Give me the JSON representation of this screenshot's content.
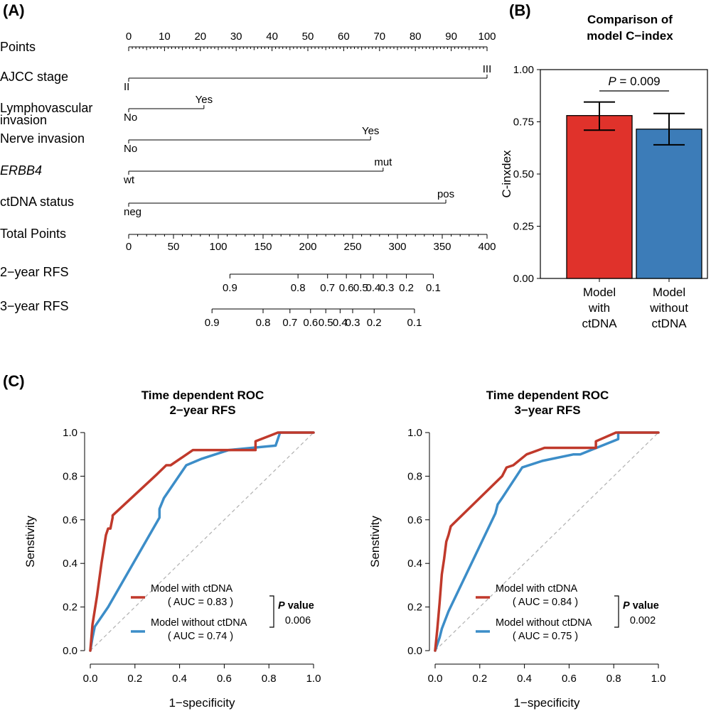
{
  "panels": {
    "a": "(A)",
    "b": "(B)",
    "c": "(C)"
  },
  "chart_data": [
    {
      "type": "nomogram",
      "points_scale": {
        "label": "Points",
        "min": 0,
        "max": 100,
        "labeled_ticks": [
          0,
          10,
          20,
          30,
          40,
          50,
          60,
          70,
          80,
          90,
          100
        ]
      },
      "variables": [
        {
          "name": "AJCC stage",
          "italic": false,
          "levels": [
            {
              "label": "II",
              "points": 0
            },
            {
              "label": "III",
              "points": 100
            }
          ]
        },
        {
          "name": "Lymphovascular\ninvasion",
          "italic": false,
          "levels": [
            {
              "label": "No",
              "points": 0
            },
            {
              "label": "Yes",
              "points": 21
            }
          ]
        },
        {
          "name": "Nerve invasion",
          "italic": false,
          "levels": [
            {
              "label": "No",
              "points": 0
            },
            {
              "label": "Yes",
              "points": 67.5
            }
          ]
        },
        {
          "name": "ERBB4",
          "italic": true,
          "levels": [
            {
              "label": "wt",
              "points": 0
            },
            {
              "label": "mut",
              "points": 71
            }
          ]
        },
        {
          "name": "ctDNA status",
          "italic": false,
          "levels": [
            {
              "label": "neg",
              "points": 0
            },
            {
              "label": "pos",
              "points": 88.5
            }
          ]
        }
      ],
      "total_points": {
        "label": "Total Points",
        "min": 0,
        "max": 400,
        "labeled_ticks": [
          0,
          50,
          100,
          150,
          200,
          250,
          300,
          350,
          400
        ]
      },
      "rfs_scales": [
        {
          "label": "2−year RFS",
          "start": 113,
          "end": 340,
          "ticks": [
            {
              "label": "0.9",
              "total": 113
            },
            {
              "label": "0.8",
              "total": 189
            },
            {
              "label": "0.7",
              "total": 222
            },
            {
              "label": "0.6",
              "total": 243
            },
            {
              "label": "0.5",
              "total": 259
            },
            {
              "label": "0.4",
              "total": 273
            },
            {
              "label": "0.3",
              "total": 288
            },
            {
              "label": "0.2",
              "total": 310
            },
            {
              "label": "0.1",
              "total": 340
            }
          ]
        },
        {
          "label": "3−year RFS",
          "start": 93,
          "end": 319,
          "ticks": [
            {
              "label": "0.9",
              "total": 93
            },
            {
              "label": "0.8",
              "total": 150
            },
            {
              "label": "0.7",
              "total": 180
            },
            {
              "label": "0.6",
              "total": 203
            },
            {
              "label": "0.5",
              "total": 220
            },
            {
              "label": "0.4",
              "total": 236
            },
            {
              "label": "0.3",
              "total": 250
            },
            {
              "label": "0.2",
              "total": 274
            },
            {
              "label": "0.1",
              "total": 319
            }
          ]
        }
      ]
    },
    {
      "type": "bar",
      "title": "Comparison of\nmodel C−index",
      "ylabel": "C-inxdex",
      "ylim": [
        0,
        1
      ],
      "yticks": [
        "0.00",
        "0.25",
        "0.50",
        "0.75",
        "1.00"
      ],
      "categories": [
        "Model\nwith\nctDNA",
        "Model\nwithout\nctDNA"
      ],
      "values": [
        0.78,
        0.715
      ],
      "error_low": [
        0.71,
        0.64
      ],
      "error_high": [
        0.845,
        0.79
      ],
      "colors": [
        "#E0322B",
        "#3C7CB8"
      ],
      "annotation": {
        "p_prefix": "P",
        "p_rest": " = 0.009"
      }
    },
    {
      "type": "line",
      "title": "Time dependent ROC\n2−year RFS",
      "xlabel": "1−specificity",
      "ylabel": "Senstivity",
      "xlim": [
        0,
        1
      ],
      "ylim": [
        0,
        1
      ],
      "ticks": [
        "0.0",
        "0.2",
        "0.4",
        "0.6",
        "0.8",
        "1.0"
      ],
      "series": [
        {
          "name": "Model with ctDNA",
          "auc": "( AUC = 0.83 )",
          "color": "#C0392B",
          "x": [
            0,
            0.01,
            0.03,
            0.05,
            0.07,
            0.08,
            0.09,
            0.1,
            0.1,
            0.3,
            0.33,
            0.34,
            0.36,
            0.46,
            0.74,
            0.74,
            0.84,
            1.0
          ],
          "y": [
            0,
            0.12,
            0.25,
            0.4,
            0.53,
            0.56,
            0.56,
            0.61,
            0.62,
            0.81,
            0.84,
            0.85,
            0.85,
            0.92,
            0.92,
            0.96,
            1.0,
            1.0
          ]
        },
        {
          "name": "Model without ctDNA",
          "auc": "( AUC = 0.74 )",
          "color": "#3C8DC8",
          "x": [
            0,
            0.01,
            0.02,
            0.08,
            0.31,
            0.31,
            0.33,
            0.43,
            0.5,
            0.62,
            0.83,
            0.84,
            0.85,
            1.0
          ],
          "y": [
            0,
            0.06,
            0.11,
            0.2,
            0.61,
            0.65,
            0.7,
            0.85,
            0.88,
            0.92,
            0.94,
            0.97,
            1.0,
            1.0
          ]
        }
      ],
      "p_value": {
        "label_bold": "P",
        "label_rest": " value",
        "value": "0.006"
      }
    },
    {
      "type": "line",
      "title": "Time dependent ROC\n3−year RFS",
      "xlabel": "1−specificity",
      "ylabel": "Senstivity",
      "xlim": [
        0,
        1
      ],
      "ylim": [
        0,
        1
      ],
      "ticks": [
        "0.0",
        "0.2",
        "0.4",
        "0.6",
        "0.8",
        "1.0"
      ],
      "series": [
        {
          "name": "Model with ctDNA",
          "auc": "( AUC = 0.84 )",
          "color": "#C0392B",
          "x": [
            0,
            0.01,
            0.02,
            0.03,
            0.04,
            0.05,
            0.06,
            0.07,
            0.08,
            0.3,
            0.32,
            0.35,
            0.41,
            0.49,
            0.72,
            0.72,
            0.81,
            1.0
          ],
          "y": [
            0,
            0.1,
            0.22,
            0.35,
            0.42,
            0.5,
            0.53,
            0.57,
            0.58,
            0.8,
            0.84,
            0.85,
            0.9,
            0.93,
            0.93,
            0.96,
            1.0,
            1.0
          ]
        },
        {
          "name": "Model without ctDNA",
          "auc": "( AUC = 0.75 )",
          "color": "#3C8DC8",
          "x": [
            0,
            0.02,
            0.03,
            0.06,
            0.27,
            0.28,
            0.3,
            0.39,
            0.48,
            0.62,
            0.65,
            0.82,
            0.82,
            1.0
          ],
          "y": [
            0,
            0.06,
            0.1,
            0.18,
            0.63,
            0.67,
            0.7,
            0.84,
            0.87,
            0.9,
            0.9,
            0.97,
            1.0,
            1.0
          ]
        }
      ],
      "p_value": {
        "label_bold": "P",
        "label_rest": " value",
        "value": "0.002"
      }
    }
  ]
}
